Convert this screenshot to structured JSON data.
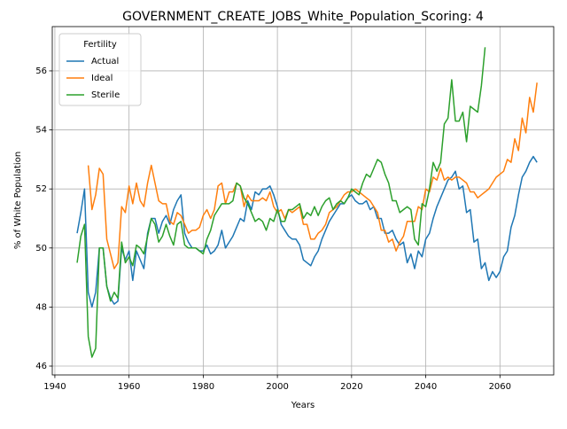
{
  "chart_data": {
    "type": "line",
    "title": "GOVERNMENT_CREATE_JOBS_White_Population_Scoring: 4",
    "x_label": "Years",
    "y_label": "% of White Population",
    "legend_title": "Fertility",
    "legend_position": "upper left",
    "grid": true,
    "xlim": [
      1939.3,
      2074.5
    ],
    "ylim": [
      45.7,
      57.5
    ],
    "xticks": [
      1940,
      1960,
      1980,
      2000,
      2020,
      2040,
      2060
    ],
    "yticks": [
      46,
      48,
      50,
      52,
      54,
      56
    ],
    "x": [
      1946,
      1947,
      1948,
      1949,
      1950,
      1951,
      1952,
      1953,
      1954,
      1955,
      1956,
      1957,
      1958,
      1959,
      1960,
      1961,
      1962,
      1963,
      1964,
      1965,
      1966,
      1967,
      1968,
      1969,
      1970,
      1971,
      1972,
      1973,
      1974,
      1975,
      1976,
      1977,
      1978,
      1979,
      1980,
      1981,
      1982,
      1983,
      1984,
      1985,
      1986,
      1987,
      1988,
      1989,
      1990,
      1991,
      1992,
      1993,
      1994,
      1995,
      1996,
      1997,
      1998,
      1999,
      2000,
      2001,
      2002,
      2003,
      2004,
      2005,
      2006,
      2007,
      2008,
      2009,
      2010,
      2011,
      2012,
      2013,
      2014,
      2015,
      2016,
      2017,
      2018,
      2019,
      2020,
      2021,
      2022,
      2023,
      2024,
      2025,
      2026,
      2027,
      2028,
      2029,
      2030,
      2031,
      2032,
      2033,
      2034,
      2035,
      2036,
      2037,
      2038,
      2039,
      2040,
      2041,
      2042,
      2043,
      2044,
      2045,
      2046,
      2047,
      2048,
      2049,
      2050,
      2051,
      2052,
      2053,
      2054,
      2055,
      2056,
      2057,
      2058,
      2059,
      2060,
      2061,
      2062,
      2063,
      2064,
      2065,
      2066,
      2067,
      2068,
      2069,
      2070
    ],
    "series": [
      {
        "name": "Actual",
        "color": "#1f77b4",
        "values": [
          50.5,
          51.2,
          52.0,
          48.5,
          48.0,
          48.5,
          50.0,
          50.0,
          48.7,
          48.3,
          48.1,
          48.2,
          50.0,
          49.6,
          49.9,
          48.9,
          49.9,
          49.6,
          49.3,
          50.5,
          51.0,
          51.0,
          50.5,
          50.9,
          51.1,
          50.8,
          51.3,
          51.6,
          51.8,
          50.5,
          50.2,
          50.0,
          50.0,
          49.9,
          49.9,
          50.1,
          49.8,
          49.9,
          50.1,
          50.6,
          50.0,
          50.2,
          50.4,
          50.7,
          51.0,
          50.9,
          51.6,
          51.3,
          51.9,
          51.8,
          52.0,
          52.0,
          52.1,
          51.8,
          51.4,
          50.8,
          50.6,
          50.4,
          50.3,
          50.3,
          50.1,
          49.6,
          49.5,
          49.4,
          49.7,
          49.9,
          50.3,
          50.6,
          50.9,
          51.1,
          51.3,
          51.5,
          51.5,
          51.7,
          51.8,
          51.6,
          51.5,
          51.5,
          51.6,
          51.3,
          51.4,
          51.0,
          51.0,
          50.5,
          50.5,
          50.6,
          50.3,
          50.1,
          50.2,
          49.5,
          49.8,
          49.3,
          49.9,
          49.7,
          50.3,
          50.5,
          51.0,
          51.4,
          51.7,
          52.0,
          52.3,
          52.4,
          52.6,
          52.0,
          52.1,
          51.2,
          51.3,
          50.2,
          50.3,
          49.3,
          49.5,
          48.9,
          49.2,
          49.0,
          49.2,
          49.7,
          49.9,
          50.7,
          51.1,
          51.8,
          52.4,
          52.6,
          52.9,
          53.1,
          52.9
        ]
      },
      {
        "name": "Ideal",
        "color": "#ff7f0e",
        "values": [
          null,
          null,
          null,
          52.8,
          51.3,
          51.8,
          52.7,
          52.5,
          50.3,
          49.8,
          49.3,
          49.5,
          51.4,
          51.2,
          52.1,
          51.5,
          52.2,
          51.6,
          51.4,
          52.2,
          52.8,
          52.2,
          51.6,
          51.5,
          51.5,
          50.9,
          50.8,
          51.2,
          51.1,
          50.8,
          50.5,
          50.6,
          50.6,
          50.7,
          51.1,
          51.3,
          51.0,
          51.3,
          52.1,
          52.2,
          51.5,
          51.9,
          51.9,
          52.2,
          52.1,
          51.4,
          51.8,
          51.6,
          51.6,
          51.6,
          51.7,
          51.6,
          51.9,
          51.4,
          51.2,
          51.3,
          51.0,
          51.3,
          51.2,
          51.3,
          51.4,
          50.8,
          50.8,
          50.3,
          50.3,
          50.5,
          50.6,
          50.8,
          51.2,
          51.3,
          51.4,
          51.6,
          51.8,
          51.9,
          51.9,
          52.0,
          51.9,
          51.8,
          51.7,
          51.6,
          51.4,
          51.2,
          50.6,
          50.6,
          50.2,
          50.3,
          49.9,
          50.2,
          50.4,
          50.9,
          50.9,
          50.9,
          51.4,
          51.3,
          52.0,
          51.9,
          52.4,
          52.3,
          52.7,
          52.3,
          52.4,
          52.3,
          52.4,
          52.4,
          52.3,
          52.2,
          51.9,
          51.9,
          51.7,
          51.8,
          51.9,
          52.0,
          52.2,
          52.4,
          52.5,
          52.6,
          53.0,
          52.9,
          53.7,
          53.3,
          54.4,
          53.9,
          55.1,
          54.6,
          55.6
        ]
      },
      {
        "name": "Sterile",
        "color": "#2ca02c",
        "values": [
          49.5,
          50.4,
          50.8,
          47.0,
          46.3,
          46.6,
          50.0,
          50.0,
          48.7,
          48.2,
          48.5,
          48.3,
          50.2,
          49.5,
          49.7,
          49.4,
          50.1,
          50.0,
          49.8,
          50.4,
          51.0,
          50.8,
          50.2,
          50.4,
          50.8,
          50.4,
          50.1,
          50.8,
          50.9,
          50.1,
          50.0,
          50.0,
          50.0,
          49.9,
          49.8,
          50.3,
          50.6,
          51.1,
          51.3,
          51.5,
          51.5,
          51.5,
          51.6,
          52.2,
          52.1,
          51.7,
          51.5,
          51.2,
          50.9,
          51.0,
          50.9,
          50.6,
          51.0,
          50.9,
          51.3,
          50.9,
          50.9,
          51.3,
          51.3,
          51.4,
          51.5,
          51.0,
          51.2,
          51.1,
          51.4,
          51.1,
          51.4,
          51.6,
          51.7,
          51.3,
          51.5,
          51.6,
          51.5,
          51.7,
          52.0,
          51.9,
          51.8,
          52.2,
          52.5,
          52.4,
          52.7,
          53.0,
          52.9,
          52.5,
          52.2,
          51.6,
          51.6,
          51.2,
          51.3,
          51.4,
          51.3,
          50.3,
          50.1,
          51.5,
          51.4,
          52.0,
          52.9,
          52.6,
          52.9,
          54.2,
          54.4,
          55.7,
          54.3,
          54.3,
          54.6,
          53.6,
          54.8,
          54.7,
          54.6,
          55.5,
          56.8,
          null,
          null,
          null,
          null,
          null,
          null,
          null,
          null,
          null,
          null,
          null,
          null,
          null,
          null
        ]
      }
    ]
  }
}
